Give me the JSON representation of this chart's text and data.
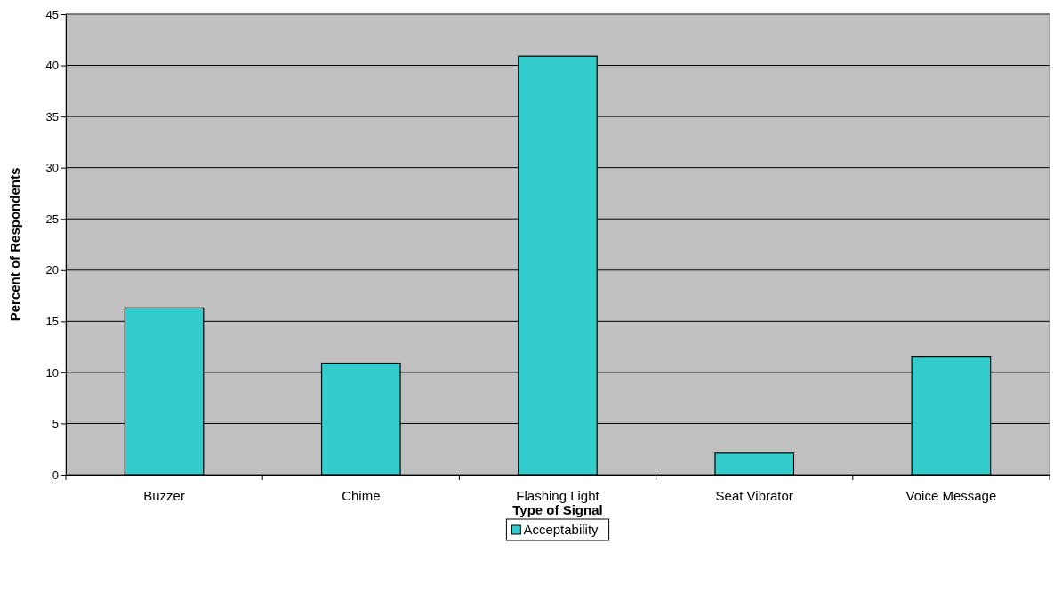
{
  "chart_data": {
    "type": "bar",
    "xlabel": "Type of Signal",
    "ylabel": "Percent of Respondents",
    "categories": [
      "Buzzer",
      "Chime",
      "Flashing Light",
      "Seat Vibrator",
      "Voice Message"
    ],
    "series": [
      {
        "name": "Acceptability",
        "color": "#33cccc",
        "values": [
          16.3,
          10.9,
          40.9,
          2.1,
          11.5
        ]
      }
    ],
    "ylim": [
      0,
      45
    ],
    "yticks": [
      0,
      5,
      10,
      15,
      20,
      25,
      30,
      35,
      40,
      45
    ],
    "grid": "y",
    "legend": "bottom"
  }
}
